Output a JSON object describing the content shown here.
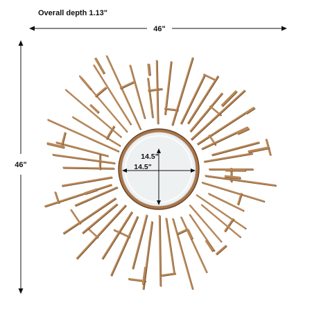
{
  "depth_label": "Overall depth 1.13\"",
  "width_label": "46\"",
  "height_label": "46\"",
  "mirror_height_label": "14.5\"",
  "mirror_width_label": "14.5\"",
  "colors": {
    "background": "#ffffff",
    "bronze": "#b98856",
    "bronze_dark": "#7a5331",
    "mirror_glass": "#eef1f2",
    "dimension_line": "#111111"
  }
}
